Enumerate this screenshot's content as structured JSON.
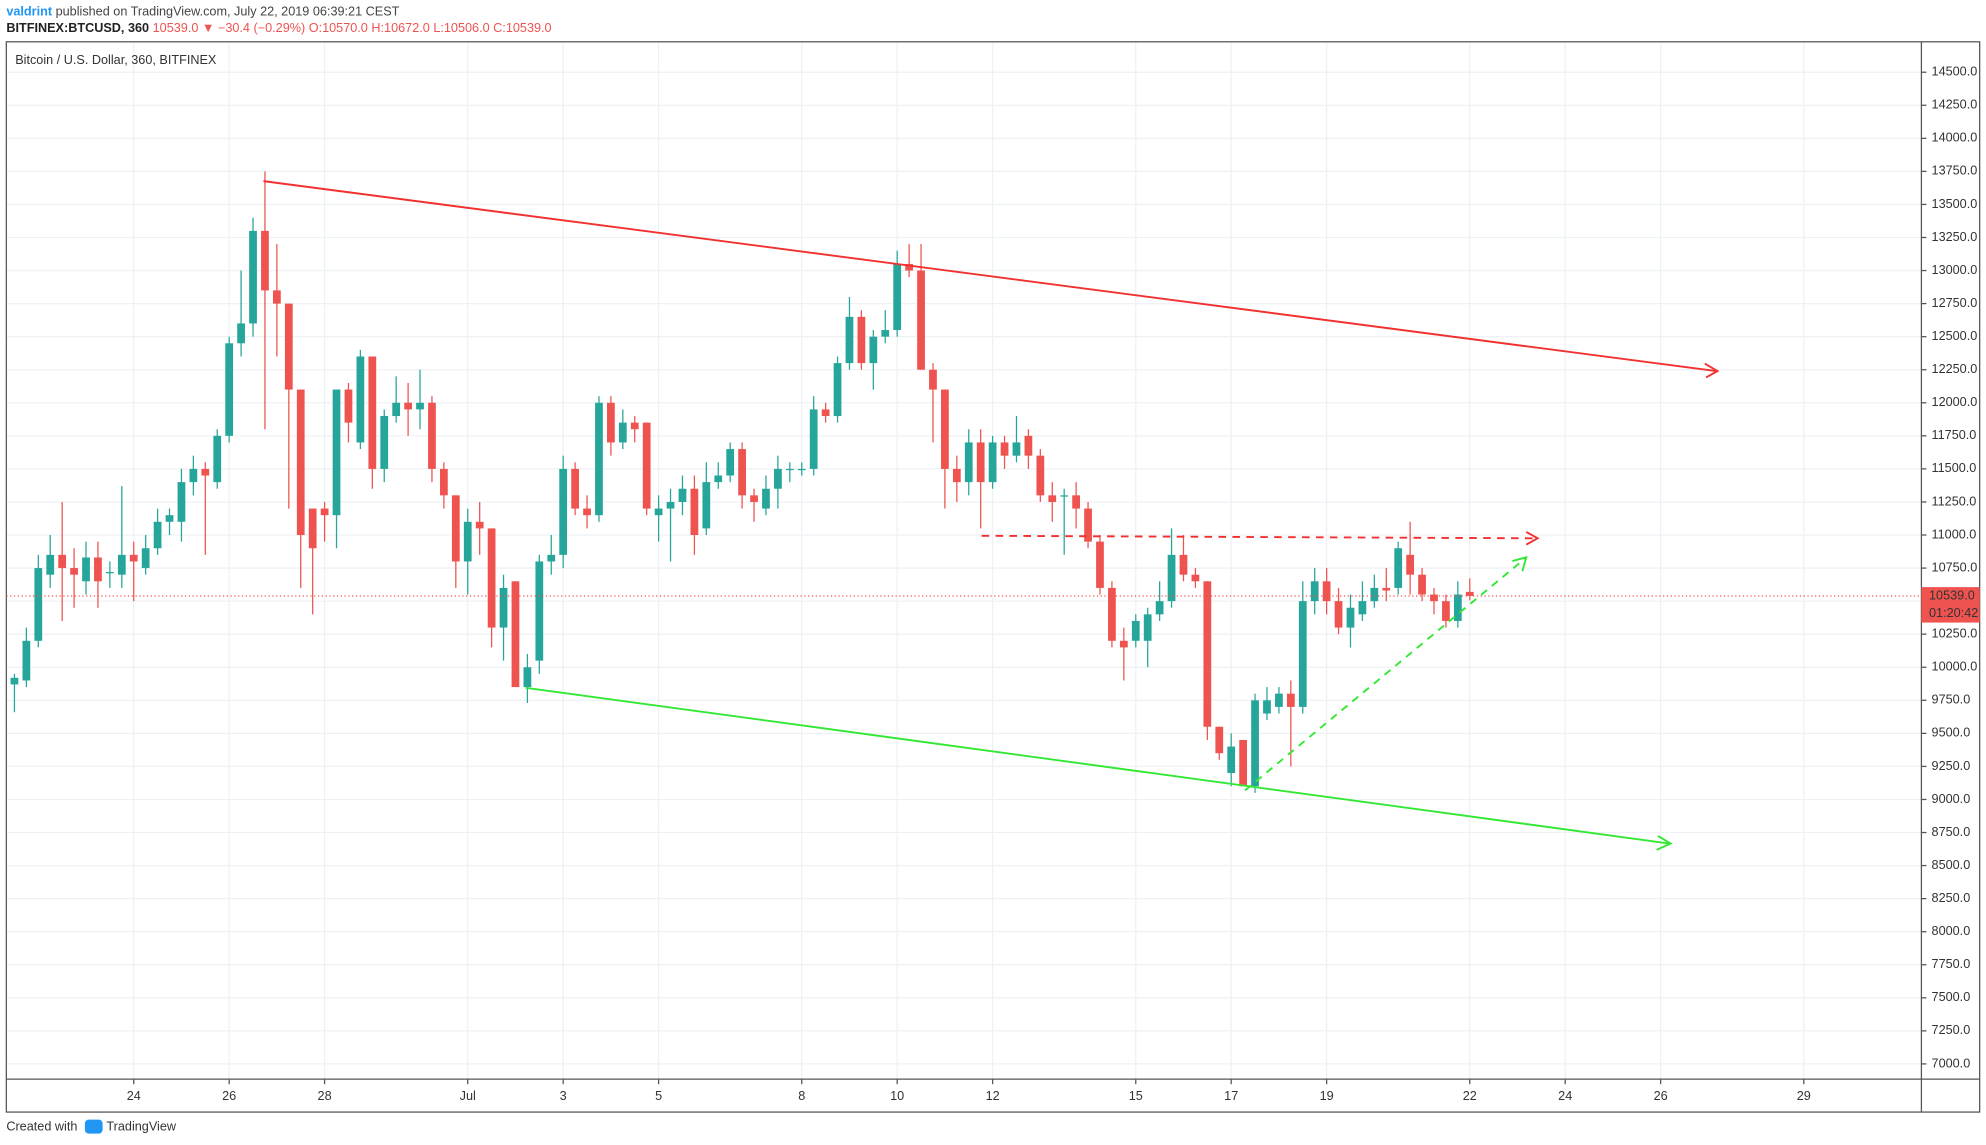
{
  "header": {
    "author": "valdrint",
    "published": "published on TradingView.com, July 22, 2019 06:39:21 CEST",
    "symbol": "BITFINEX:BTCUSD, 360",
    "last": "10539.0",
    "change": "▼ −30.4 (−0.29%)",
    "ohlc": [
      "O:10570.0",
      "H:10672.0",
      "L:10506.0",
      "C:10539.0"
    ]
  },
  "chart_data": {
    "type": "candlestick",
    "title": "Bitcoin / U.S. Dollar, 360, BITFINEX",
    "up_color": "#26a69a",
    "down_color": "#ef5350",
    "grid": true,
    "open": [
      9870,
      9900,
      10200,
      10700,
      10850,
      10750,
      10650,
      10830,
      10720,
      10700,
      10850,
      10750,
      10900,
      11100,
      11100,
      11400,
      11500,
      11400,
      11750,
      12450,
      12600,
      13300,
      12850,
      12750,
      12100,
      11200,
      11200,
      11150,
      12100,
      11700,
      12350,
      11500,
      11900,
      12000,
      11950,
      12000,
      11500,
      11300,
      10800,
      11100,
      11050,
      10300,
      10650,
      9850,
      10050,
      10800,
      10850,
      11500,
      11200,
      11150,
      12000,
      11700,
      11850,
      11850,
      11150,
      11200,
      11250,
      11350,
      11050,
      11400,
      11450,
      11650,
      11300,
      11200,
      11350,
      11500,
      11500,
      11500,
      11950,
      11900,
      12300,
      12650,
      12300,
      12500,
      12550,
      13050,
      13000,
      12250,
      12100,
      11500,
      11400,
      11700,
      11400,
      11700,
      11600,
      11750,
      11600,
      11300,
      11300,
      11300,
      11200,
      10950,
      10600,
      10200,
      10200,
      10200,
      10400,
      10500,
      10850,
      10700,
      10650,
      9550,
      9200,
      9450,
      9100,
      9650,
      9700,
      9800,
      9700,
      10500,
      10650,
      10500,
      10300,
      10400,
      10500,
      10600,
      10600,
      10850,
      10700,
      10550,
      10500,
      10350,
      10570
    ],
    "high": [
      9950,
      10300,
      10850,
      11000,
      11250,
      10900,
      10950,
      10950,
      10800,
      11370,
      10950,
      11000,
      11200,
      11200,
      11500,
      11600,
      11550,
      11800,
      12500,
      13000,
      13400,
      13750,
      13200,
      12750,
      12100,
      11200,
      11250,
      12100,
      12150,
      12400,
      12350,
      11950,
      12200,
      12150,
      12250,
      12050,
      11550,
      11300,
      11200,
      11250,
      11050,
      10700,
      10650,
      10100,
      10850,
      11000,
      11600,
      11550,
      11300,
      12050,
      12050,
      11950,
      11900,
      11850,
      11300,
      11350,
      11450,
      11450,
      11550,
      11550,
      11700,
      11700,
      11350,
      11450,
      11600,
      11550,
      11550,
      12050,
      12000,
      12350,
      12800,
      12700,
      12550,
      12700,
      13150,
      13200,
      13200,
      12300,
      12100,
      11600,
      11800,
      11800,
      11750,
      11750,
      11900,
      11800,
      11650,
      11400,
      11350,
      11400,
      11250,
      11000,
      10650,
      10300,
      10400,
      10450,
      10650,
      11050,
      11000,
      10750,
      10650,
      9550,
      9500,
      9450,
      9800,
      9850,
      9850,
      9900,
      10650,
      10750,
      10750,
      10600,
      10550,
      10650,
      10700,
      10750,
      10950,
      11100,
      10750,
      10600,
      10550,
      10650,
      10672
    ],
    "low": [
      9660,
      9850,
      10150,
      10600,
      10350,
      10450,
      10550,
      10450,
      10600,
      10600,
      10500,
      10700,
      10850,
      11000,
      10950,
      11300,
      10850,
      11350,
      11700,
      12350,
      12500,
      11800,
      12350,
      11200,
      10600,
      10400,
      10950,
      10900,
      11700,
      11650,
      11350,
      11400,
      11850,
      11750,
      11800,
      11400,
      11200,
      10600,
      10550,
      10850,
      10150,
      10050,
      9850,
      9730,
      9950,
      10700,
      10750,
      11150,
      11050,
      11100,
      11600,
      11650,
      11700,
      11150,
      10950,
      10800,
      11150,
      10850,
      11000,
      11350,
      11400,
      11200,
      11100,
      11150,
      11200,
      11400,
      11450,
      11450,
      11850,
      11850,
      12250,
      12250,
      12100,
      12450,
      12500,
      12950,
      12250,
      11700,
      11200,
      11250,
      11300,
      11050,
      11350,
      11500,
      11550,
      11500,
      11250,
      11100,
      10850,
      11050,
      10900,
      10550,
      10150,
      9900,
      10150,
      10000,
      10350,
      10450,
      10650,
      10600,
      9450,
      9300,
      9100,
      9100,
      9050,
      9600,
      9650,
      9250,
      9650,
      10400,
      10400,
      10250,
      10150,
      10350,
      10450,
      10500,
      10550,
      10550,
      10500,
      10400,
      10300,
      10300,
      10506
    ],
    "close": [
      9920,
      10200,
      10750,
      10850,
      10750,
      10700,
      10830,
      10650,
      10720,
      10850,
      10800,
      10900,
      11100,
      11150,
      11400,
      11500,
      11450,
      11750,
      12450,
      12600,
      13300,
      12850,
      12750,
      12100,
      11000,
      10900,
      11150,
      12100,
      11850,
      12350,
      11500,
      11900,
      12000,
      11950,
      12000,
      11500,
      11300,
      10800,
      11100,
      11050,
      10300,
      10600,
      9850,
      10000,
      10800,
      10850,
      11500,
      11200,
      11150,
      12000,
      11700,
      11850,
      11800,
      11200,
      11200,
      11250,
      11350,
      11000,
      11400,
      11450,
      11650,
      11300,
      11250,
      11350,
      11500,
      11500,
      11500,
      11950,
      11900,
      12300,
      12650,
      12300,
      12500,
      12550,
      13050,
      13000,
      12250,
      12100,
      11500,
      11400,
      11700,
      11400,
      11700,
      11600,
      11700,
      11600,
      11300,
      11250,
      11300,
      11200,
      10950,
      10600,
      10200,
      10150,
      10350,
      10400,
      10500,
      10850,
      10700,
      10650,
      9550,
      9350,
      9400,
      9100,
      9750,
      9750,
      9800,
      9700,
      10500,
      10650,
      10500,
      10300,
      10450,
      10500,
      10600,
      10580,
      10900,
      10700,
      10550,
      10500,
      10350,
      10550,
      10539
    ],
    "xlim": [
      -0.68,
      159.86
    ],
    "xticks": [
      {
        "value": 10,
        "label": "24"
      },
      {
        "value": 18,
        "label": "26"
      },
      {
        "value": 26,
        "label": "28"
      },
      {
        "value": 38,
        "label": "Jul"
      },
      {
        "value": 46,
        "label": "3"
      },
      {
        "value": 54,
        "label": "5"
      },
      {
        "value": 66,
        "label": "8"
      },
      {
        "value": 74,
        "label": "10"
      },
      {
        "value": 82,
        "label": "12"
      },
      {
        "value": 94,
        "label": "15"
      },
      {
        "value": 102,
        "label": "17"
      },
      {
        "value": 110,
        "label": "19"
      },
      {
        "value": 122,
        "label": "22"
      },
      {
        "value": 130,
        "label": "24"
      },
      {
        "value": 138,
        "label": "26"
      },
      {
        "value": 150,
        "label": "29"
      }
    ],
    "ylim": [
      6885,
      14730
    ],
    "yticks": [
      {
        "value": 7000,
        "label": "7000.0"
      },
      {
        "value": 7250,
        "label": "7250.0"
      },
      {
        "value": 7500,
        "label": "7500.0"
      },
      {
        "value": 7750,
        "label": "7750.0"
      },
      {
        "value": 8000,
        "label": "8000.0"
      },
      {
        "value": 8250,
        "label": "8250.0"
      },
      {
        "value": 8500,
        "label": "8500.0"
      },
      {
        "value": 8750,
        "label": "8750.0"
      },
      {
        "value": 9000,
        "label": "9000.0"
      },
      {
        "value": 9250,
        "label": "9250.0"
      },
      {
        "value": 9500,
        "label": "9500.0"
      },
      {
        "value": 9750,
        "label": "9750.0"
      },
      {
        "value": 10000,
        "label": "10000.0"
      },
      {
        "value": 10250,
        "label": "10250.0"
      },
      {
        "value": 10500,
        "label": "10500.0"
      },
      {
        "value": 10750,
        "label": "10750.0"
      },
      {
        "value": 11000,
        "label": "11000.0"
      },
      {
        "value": 11250,
        "label": "11250.0"
      },
      {
        "value": 11500,
        "label": "11500.0"
      },
      {
        "value": 11750,
        "label": "11750.0"
      },
      {
        "value": 12000,
        "label": "12000.0"
      },
      {
        "value": 12250,
        "label": "12250.0"
      },
      {
        "value": 12500,
        "label": "12500.0"
      },
      {
        "value": 12750,
        "label": "12750.0"
      },
      {
        "value": 13000,
        "label": "13000.0"
      },
      {
        "value": 13250,
        "label": "13250.0"
      },
      {
        "value": 13500,
        "label": "13500.0"
      },
      {
        "value": 13750,
        "label": "13750.0"
      },
      {
        "value": 14000,
        "label": "14000.0"
      },
      {
        "value": 14250,
        "label": "14250.0"
      },
      {
        "value": 14500,
        "label": "14500.0"
      }
    ],
    "last_price": {
      "value": 10539,
      "label": "10539.0"
    },
    "countdown": "01:20:42"
  },
  "footer": {
    "created": "Created with",
    "brand": "TradingView"
  }
}
